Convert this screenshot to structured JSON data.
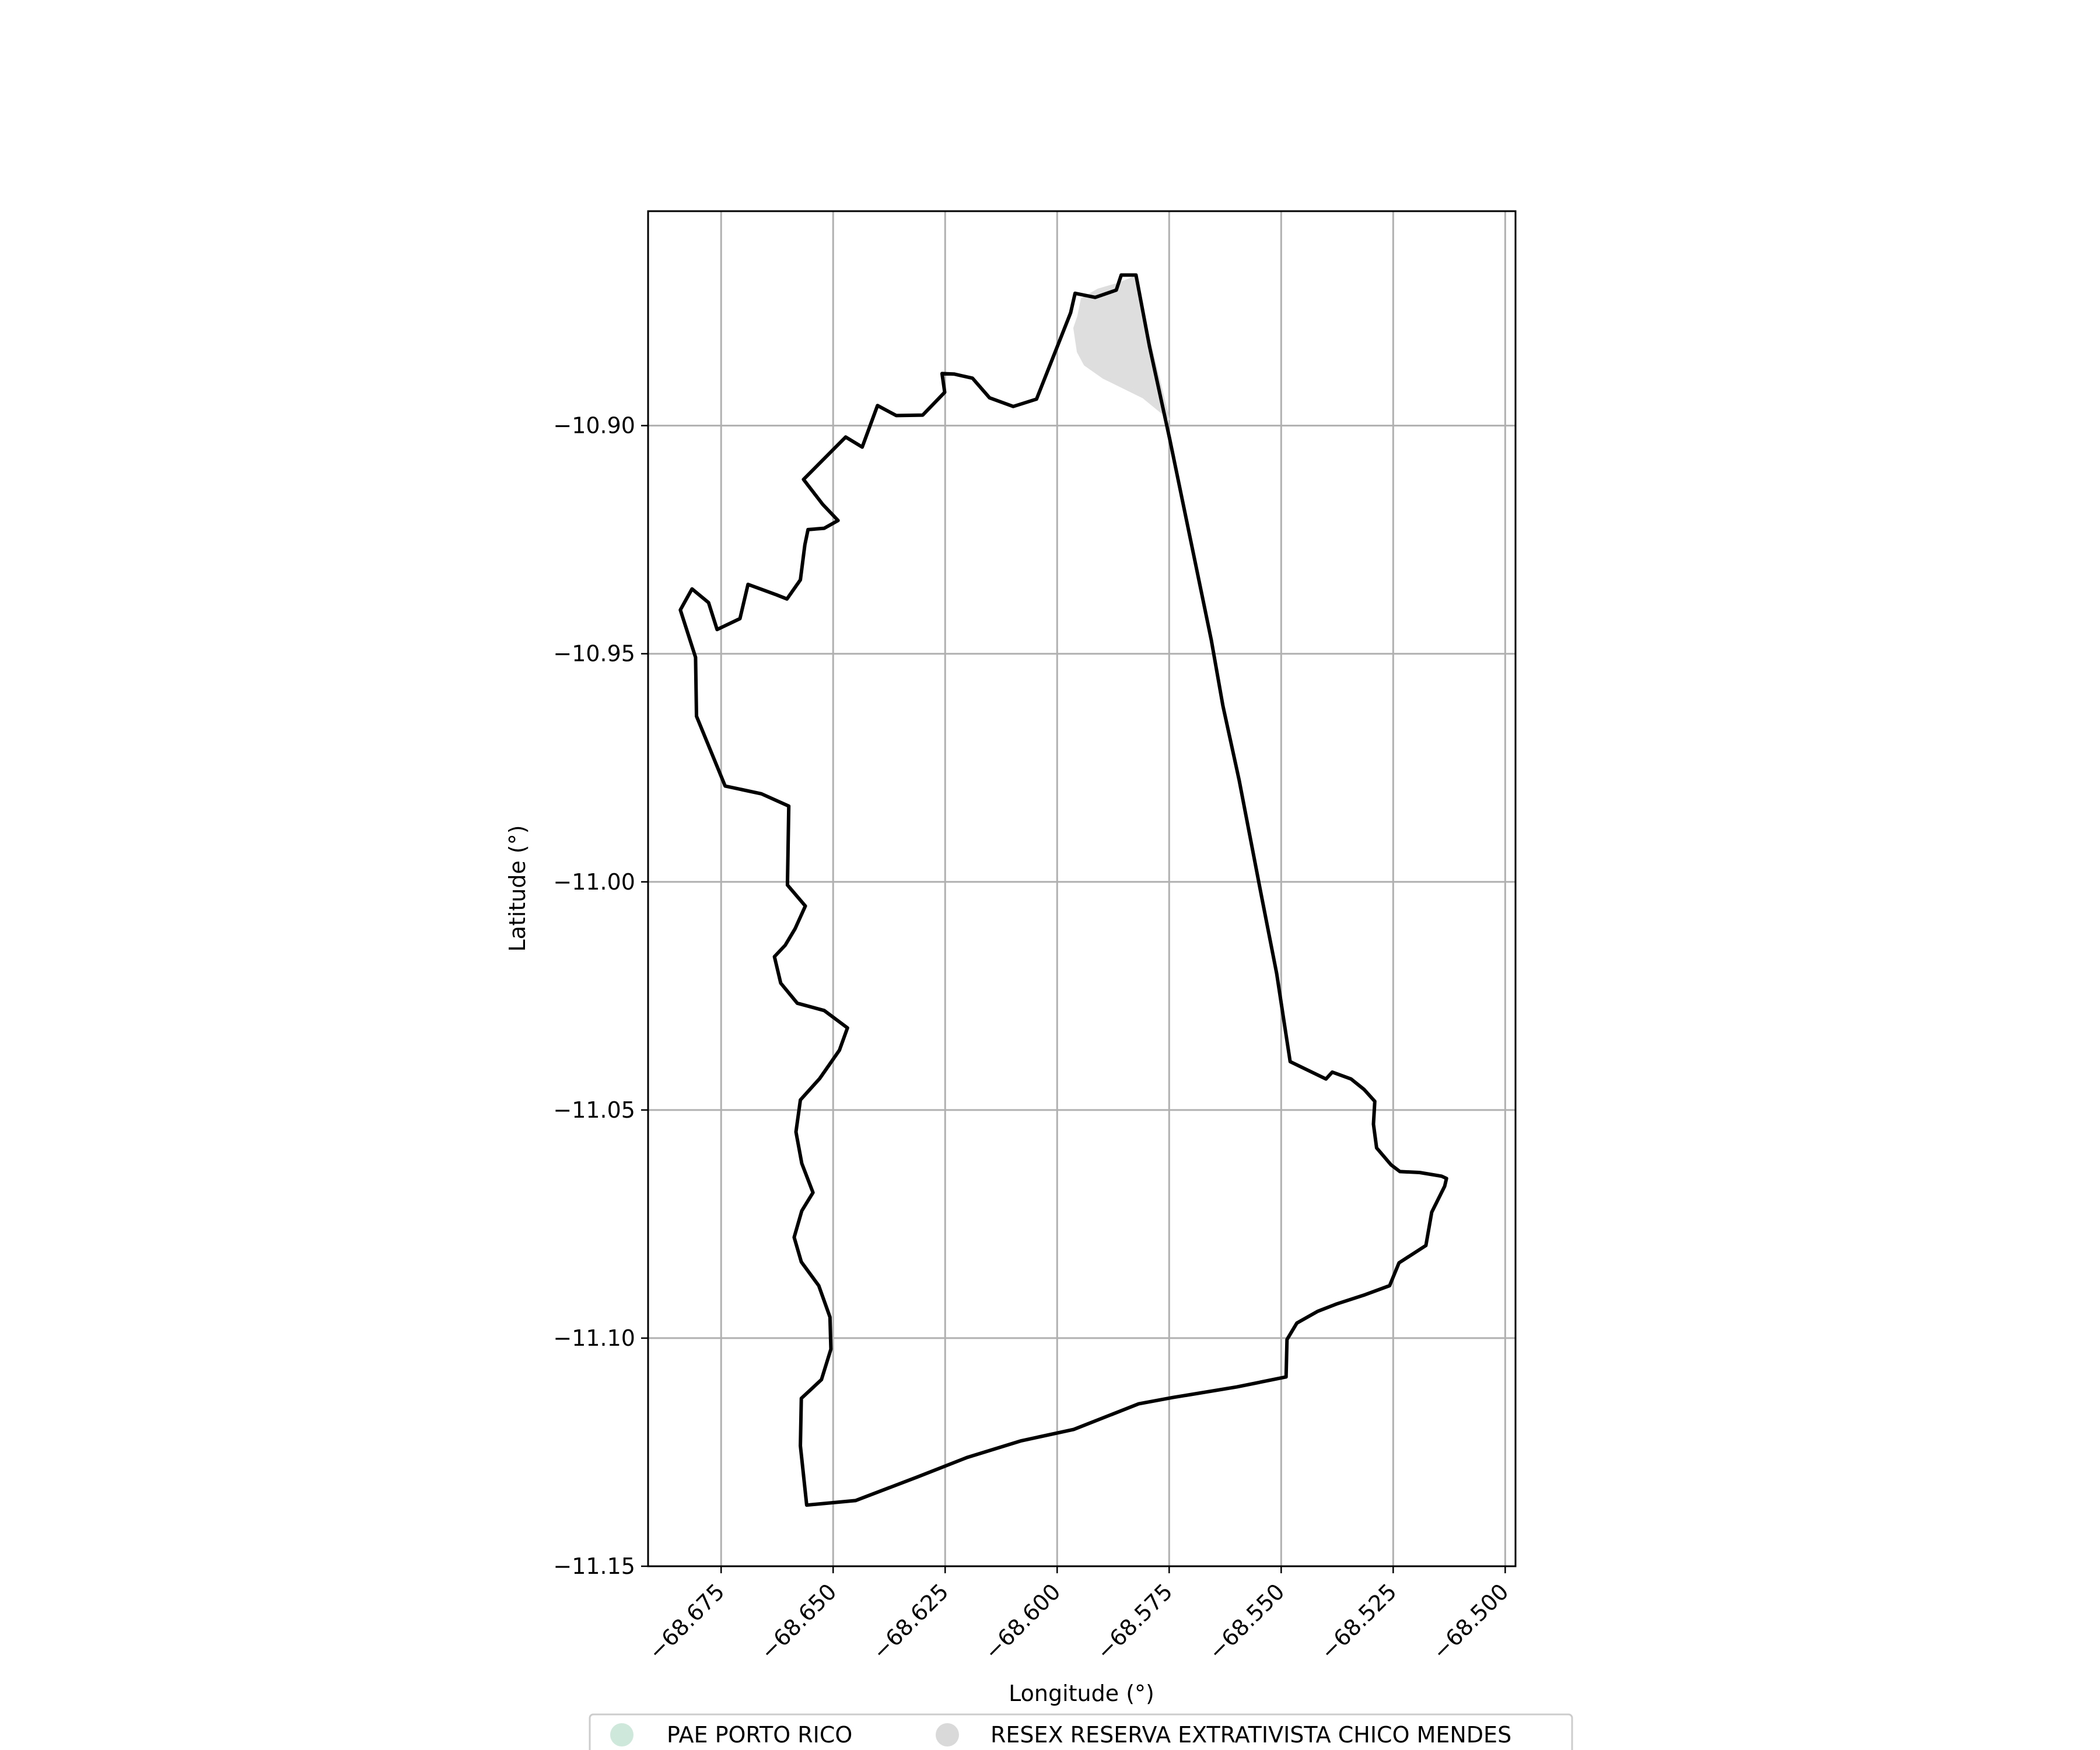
{
  "chart_data": {
    "type": "map",
    "xlabel": "Longitude (°)",
    "ylabel": "Latitude (°)",
    "xlim": [
      -68.6913,
      -68.4977
    ],
    "ylim": [
      -11.15,
      -10.853
    ],
    "grid": true,
    "x_ticks": [
      -68.675,
      -68.65,
      -68.625,
      -68.6,
      -68.575,
      -68.55,
      -68.525,
      -68.5
    ],
    "x_tick_labels": [
      "−68.675",
      "−68.650",
      "−68.625",
      "−68.600",
      "−68.575",
      "−68.550",
      "−68.525",
      "−68.500"
    ],
    "y_ticks": [
      -10.9,
      -10.95,
      -11.0,
      -11.05,
      -11.1,
      -11.15
    ],
    "y_tick_labels": [
      "−10.90",
      "−10.95",
      "−11.00",
      "−11.05",
      "−11.10",
      "−11.15"
    ],
    "legend": {
      "placement": "bottom-center",
      "entries": [
        {
          "name": "PAE PORTO RICO",
          "color": "#cfe8dc"
        },
        {
          "name": "RESEX RESERVA EXTRATIVISTA CHICO MENDES",
          "color": "#d9d9d9"
        }
      ]
    },
    "layers": [
      {
        "name": "RESEX RESERVA EXTRATIVISTA CHICO MENDES",
        "fill": "#dedede",
        "coordinates": [
          [
            -68.5964,
            -10.8786
          ],
          [
            -68.5956,
            -10.8839
          ],
          [
            -68.594,
            -10.8868
          ],
          [
            -68.5898,
            -10.8897
          ],
          [
            -68.5809,
            -10.894
          ],
          [
            -68.5748,
            -10.8989
          ],
          [
            -68.5827,
            -10.8672
          ],
          [
            -68.5861,
            -10.8686
          ],
          [
            -68.591,
            -10.87
          ],
          [
            -68.5947,
            -10.8721
          ],
          [
            -68.5955,
            -10.876
          ],
          [
            -68.5964,
            -10.8786
          ]
        ]
      },
      {
        "name": "PAE PORTO RICO",
        "fill": "none",
        "stroke": "#000000",
        "coordinates": [
          [
            -68.5837,
            -10.867
          ],
          [
            -68.5824,
            -10.867
          ],
          [
            -68.5794,
            -10.8826
          ],
          [
            -68.5749,
            -10.9028
          ],
          [
            -68.5705,
            -10.9237
          ],
          [
            -68.5656,
            -10.947
          ],
          [
            -68.563,
            -10.9614
          ],
          [
            -68.5594,
            -10.9776
          ],
          [
            -68.5546,
            -11.0021
          ],
          [
            -68.551,
            -11.0201
          ],
          [
            -68.548,
            -11.0394
          ],
          [
            -68.54,
            -11.0432
          ],
          [
            -68.5386,
            -11.0417
          ],
          [
            -68.5344,
            -11.0432
          ],
          [
            -68.5315,
            -11.0455
          ],
          [
            -68.5291,
            -11.0481
          ],
          [
            -68.5294,
            -11.0531
          ],
          [
            -68.5287,
            -11.0583
          ],
          [
            -68.5255,
            -11.062
          ],
          [
            -68.5235,
            -11.0635
          ],
          [
            -68.5191,
            -11.0637
          ],
          [
            -68.5142,
            -11.0645
          ],
          [
            -68.5131,
            -11.065
          ],
          [
            -68.5135,
            -11.0667
          ],
          [
            -68.5164,
            -11.0724
          ],
          [
            -68.5177,
            -11.0797
          ],
          [
            -68.5237,
            -11.0835
          ],
          [
            -68.5258,
            -11.0885
          ],
          [
            -68.5313,
            -11.0905
          ],
          [
            -68.5376,
            -11.0925
          ],
          [
            -68.5418,
            -11.0941
          ],
          [
            -68.5465,
            -11.0967
          ],
          [
            -68.5487,
            -11.1003
          ],
          [
            -68.5489,
            -11.1085
          ],
          [
            -68.5599,
            -11.1107
          ],
          [
            -68.5741,
            -11.113
          ],
          [
            -68.5818,
            -11.1144
          ],
          [
            -68.5963,
            -11.12
          ],
          [
            -68.608,
            -11.1225
          ],
          [
            -68.6202,
            -11.1262
          ],
          [
            -68.6311,
            -11.1304
          ],
          [
            -68.645,
            -11.1356
          ],
          [
            -68.6559,
            -11.1366
          ],
          [
            -68.6573,
            -11.1236
          ],
          [
            -68.6571,
            -11.1132
          ],
          [
            -68.6526,
            -11.1091
          ],
          [
            -68.6505,
            -11.1024
          ],
          [
            -68.6507,
            -11.0954
          ],
          [
            -68.6532,
            -11.0885
          ],
          [
            -68.6571,
            -11.0833
          ],
          [
            -68.6587,
            -11.0779
          ],
          [
            -68.657,
            -11.0721
          ],
          [
            -68.6545,
            -11.0681
          ],
          [
            -68.657,
            -11.0617
          ],
          [
            -68.6583,
            -11.0548
          ],
          [
            -68.6573,
            -11.0478
          ],
          [
            -68.653,
            -11.0431
          ],
          [
            -68.6486,
            -11.0369
          ],
          [
            -68.6468,
            -11.032
          ],
          [
            -68.652,
            -11.0282
          ],
          [
            -68.658,
            -11.0266
          ],
          [
            -68.6617,
            -11.0222
          ],
          [
            -68.6631,
            -11.0164
          ],
          [
            -68.6607,
            -11.0139
          ],
          [
            -68.6585,
            -11.0103
          ],
          [
            -68.6562,
            -11.0053
          ],
          [
            -68.6602,
            -11.0007
          ],
          [
            -68.6599,
            -10.9834
          ],
          [
            -68.666,
            -10.9807
          ],
          [
            -68.6741,
            -10.979
          ],
          [
            -68.6805,
            -10.9637
          ],
          [
            -68.6807,
            -10.9508
          ],
          [
            -68.6841,
            -10.9404
          ],
          [
            -68.6815,
            -10.9358
          ],
          [
            -68.6778,
            -10.9388
          ],
          [
            -68.6759,
            -10.9447
          ],
          [
            -68.6708,
            -10.9423
          ],
          [
            -68.669,
            -10.9348
          ],
          [
            -68.6626,
            -10.9371
          ],
          [
            -68.6603,
            -10.938
          ],
          [
            -68.6573,
            -10.9338
          ],
          [
            -68.6563,
            -10.9261
          ],
          [
            -68.6556,
            -10.9228
          ],
          [
            -68.652,
            -10.9225
          ],
          [
            -68.6489,
            -10.9208
          ],
          [
            -68.6523,
            -10.9173
          ],
          [
            -68.6566,
            -10.9118
          ],
          [
            -68.6472,
            -10.9025
          ],
          [
            -68.6435,
            -10.9047
          ],
          [
            -68.6401,
            -10.8956
          ],
          [
            -68.6359,
            -10.8978
          ],
          [
            -68.63,
            -10.8977
          ],
          [
            -68.6251,
            -10.8927
          ],
          [
            -68.6257,
            -10.8886
          ],
          [
            -68.623,
            -10.8887
          ],
          [
            -68.6189,
            -10.8896
          ],
          [
            -68.6151,
            -10.8939
          ],
          [
            -68.6098,
            -10.8958
          ],
          [
            -68.6046,
            -10.8942
          ],
          [
            -68.597,
            -10.8753
          ],
          [
            -68.596,
            -10.871
          ],
          [
            -68.5915,
            -10.8719
          ],
          [
            -68.5868,
            -10.8703
          ],
          [
            -68.5857,
            -10.867
          ],
          [
            -68.5837,
            -10.867
          ]
        ]
      }
    ]
  }
}
